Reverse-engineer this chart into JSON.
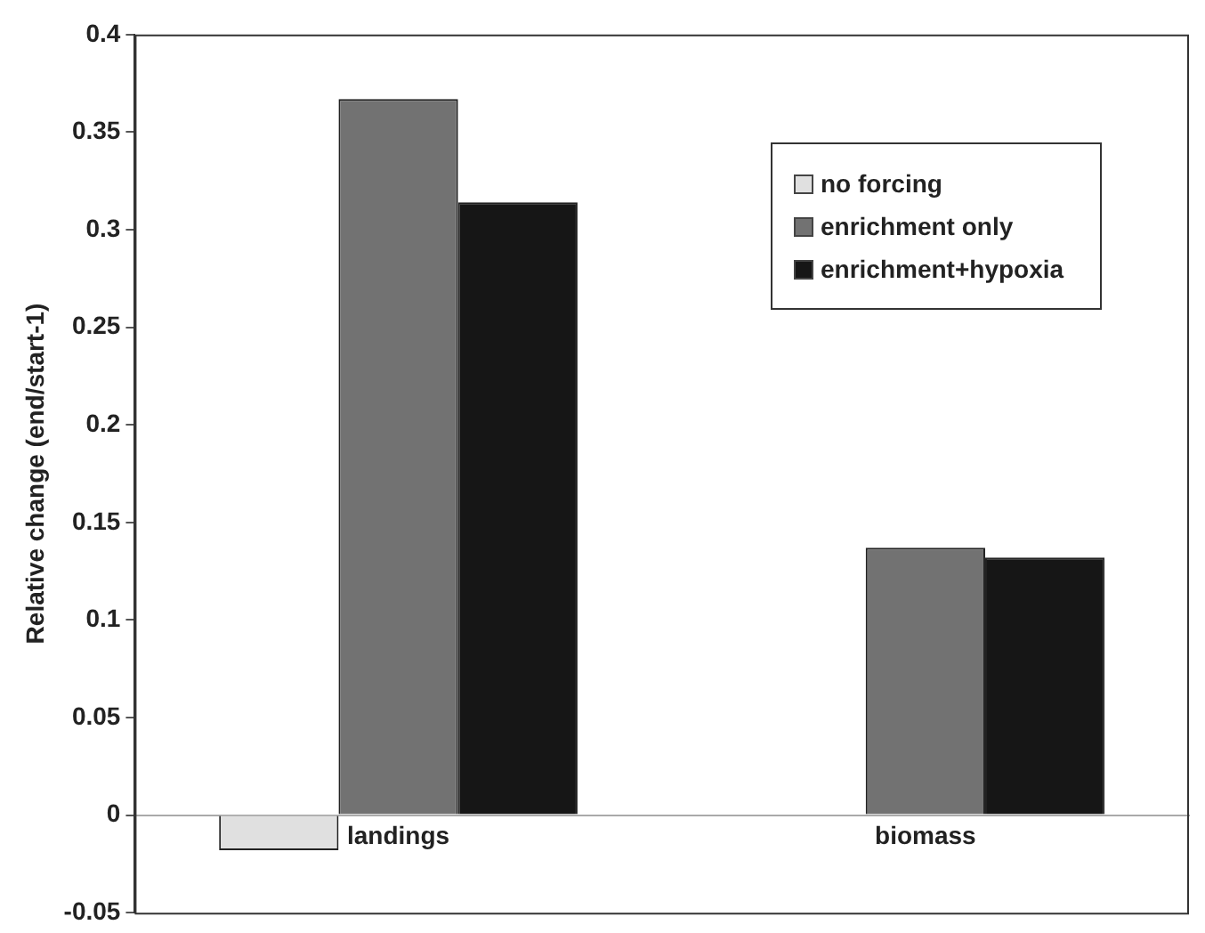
{
  "chart_data": {
    "type": "bar",
    "ylabel": "Relative change (end/start-1)",
    "categories": [
      "landings",
      "biomass"
    ],
    "series": [
      {
        "name": "no forcing",
        "color": "#e0e0e0",
        "values": [
          -0.018,
          null
        ]
      },
      {
        "name": "enrichment only",
        "color": "#727272",
        "values": [
          0.367,
          0.137
        ]
      },
      {
        "name": "enrichment+hypoxia",
        "color": "#161616",
        "values": [
          0.314,
          0.132
        ]
      }
    ],
    "ylim": [
      -0.05,
      0.4
    ],
    "yticks": [
      -0.05,
      0,
      0.05,
      0.1,
      0.15,
      0.2,
      0.25,
      0.3,
      0.35,
      0.4
    ],
    "grid": false,
    "legend": "top right"
  }
}
